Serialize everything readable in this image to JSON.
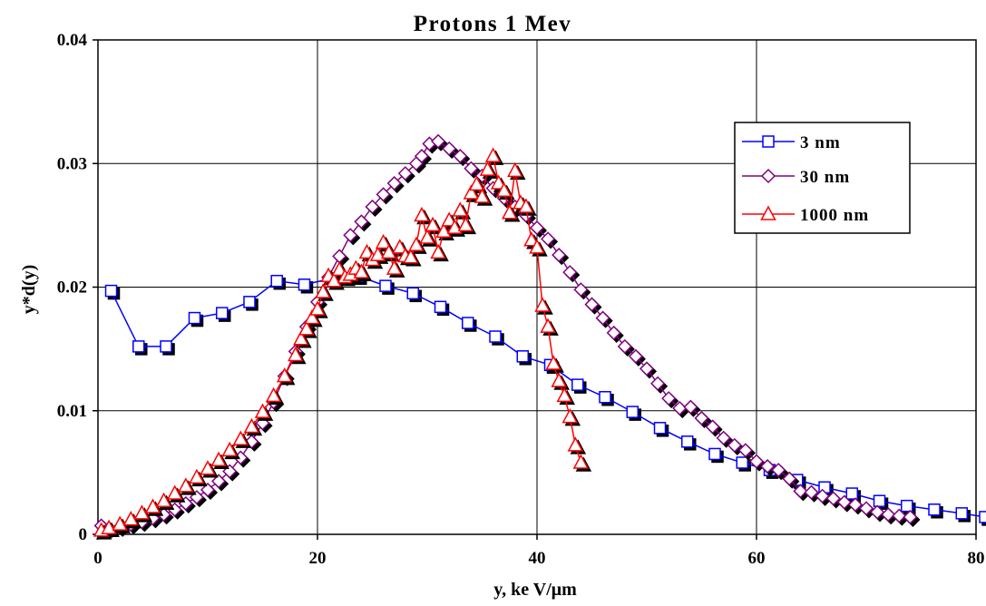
{
  "chart_data": {
    "type": "line",
    "title": "Protons 1 Mev",
    "xlabel": "y, ke V/μm",
    "ylabel": "y*d(y)",
    "xlim": [
      0,
      80
    ],
    "ylim": [
      0,
      0.04
    ],
    "xticks": [
      0,
      20,
      40,
      60,
      80
    ],
    "yticks": [
      0,
      0.01,
      0.02,
      0.03,
      0.04
    ],
    "xtick_labels": [
      "0",
      "20",
      "40",
      "60",
      "80"
    ],
    "ytick_labels": [
      "0",
      "0.01",
      "0.02",
      "0.03",
      "0.04"
    ],
    "grid": true,
    "legend_position": "top-right",
    "series": [
      {
        "name": "3 nm",
        "color": "#0000ff",
        "marker": "square",
        "x": [
          1.2,
          3.7,
          6.2,
          8.8,
          11.3,
          13.8,
          16.3,
          18.8,
          21.3,
          23.7,
          26.2,
          28.7,
          31.2,
          33.7,
          36.2,
          38.7,
          41.2,
          43.7,
          46.2,
          48.7,
          51.2,
          53.7,
          56.2,
          58.7,
          61.2,
          63.7,
          66.2,
          68.7,
          71.2,
          73.7,
          76.2,
          78.7,
          81.2
        ],
        "y": [
          0.0197,
          0.0152,
          0.0152,
          0.0175,
          0.0179,
          0.0188,
          0.0205,
          0.0202,
          0.0207,
          0.0209,
          0.0201,
          0.0195,
          0.0184,
          0.0171,
          0.016,
          0.0144,
          0.0137,
          0.0121,
          0.0111,
          0.0099,
          0.0086,
          0.0075,
          0.0065,
          0.0058,
          0.0052,
          0.0044,
          0.0038,
          0.0033,
          0.0027,
          0.0023,
          0.002,
          0.0017,
          0.0014
        ]
      },
      {
        "name": "30 nm",
        "color": "#800080",
        "marker": "diamond",
        "x": [
          0.3,
          1.0,
          2.0,
          3.0,
          4.0,
          5.0,
          6.0,
          7.0,
          8.0,
          9.0,
          10.0,
          11.0,
          12.0,
          13.0,
          14.0,
          15.0,
          16.0,
          17.0,
          18.0,
          19.0,
          20.0,
          21.0,
          22.0,
          23.0,
          24.0,
          25.0,
          26.0,
          27.0,
          28.0,
          29.0,
          29.5,
          30.2,
          31.0,
          32.0,
          33.0,
          34.0,
          35.0,
          36.0,
          37.0,
          38.0,
          39.0,
          40.0,
          41.0,
          42.0,
          43.0,
          44.0,
          45.0,
          46.0,
          47.0,
          48.0,
          49.0,
          50.0,
          51.0,
          52.0,
          53.0,
          54.0,
          55.0,
          56.0,
          57.0,
          58.0,
          59.0,
          60.0,
          61.0,
          62.0,
          63.0,
          64.0,
          65.0,
          66.0,
          67.0,
          68.0,
          69.0,
          70.0,
          71.0,
          72.0,
          73.0,
          74.0
        ],
        "y": [
          0.0007,
          0.0005,
          0.0006,
          0.0008,
          0.001,
          0.0013,
          0.0016,
          0.002,
          0.0025,
          0.003,
          0.0036,
          0.0043,
          0.0051,
          0.0062,
          0.0075,
          0.009,
          0.0107,
          0.0128,
          0.0148,
          0.0168,
          0.0188,
          0.0208,
          0.0225,
          0.0242,
          0.0253,
          0.0265,
          0.0275,
          0.0284,
          0.0292,
          0.03,
          0.0306,
          0.0316,
          0.0318,
          0.0312,
          0.0306,
          0.0296,
          0.029,
          0.028,
          0.0272,
          0.0265,
          0.0258,
          0.0248,
          0.0239,
          0.0226,
          0.0212,
          0.0198,
          0.0186,
          0.0175,
          0.0163,
          0.0152,
          0.0144,
          0.0134,
          0.0122,
          0.011,
          0.0102,
          0.0103,
          0.0094,
          0.0087,
          0.0078,
          0.0072,
          0.0068,
          0.0059,
          0.0055,
          0.0052,
          0.0045,
          0.0035,
          0.0034,
          0.0031,
          0.0029,
          0.0026,
          0.0024,
          0.0021,
          0.0018,
          0.0016,
          0.0015,
          0.0014
        ]
      },
      {
        "name": "1000 nm",
        "color": "#ff0000",
        "marker": "triangle",
        "x": [
          0.3,
          1.0,
          2.0,
          3.0,
          4.0,
          5.0,
          6.0,
          7.0,
          8.0,
          9.0,
          10.0,
          11.0,
          12.0,
          13.0,
          14.0,
          15.0,
          16.0,
          17.0,
          18.0,
          18.5,
          19.0,
          19.5,
          20.0,
          20.5,
          21.0,
          21.5,
          22.0,
          22.5,
          23.0,
          23.5,
          24.0,
          24.5,
          25.0,
          25.5,
          26.0,
          26.5,
          27.0,
          27.5,
          28.0,
          28.5,
          29.0,
          29.5,
          30.0,
          30.5,
          31.0,
          31.5,
          32.0,
          32.5,
          33.0,
          33.5,
          34.0,
          34.5,
          35.0,
          35.5,
          36.0,
          36.5,
          37.0,
          37.5,
          38.0,
          38.5,
          39.0,
          39.5,
          40.0,
          40.5,
          41.0,
          41.5,
          42.0,
          42.5,
          43.0,
          43.5,
          44.0
        ],
        "y": [
          0.0003,
          0.0005,
          0.0008,
          0.0012,
          0.0017,
          0.0022,
          0.0027,
          0.0033,
          0.0039,
          0.0046,
          0.0053,
          0.006,
          0.0068,
          0.0077,
          0.0087,
          0.0099,
          0.0112,
          0.0128,
          0.0145,
          0.0158,
          0.0166,
          0.0175,
          0.0182,
          0.0196,
          0.0209,
          0.0205,
          0.0214,
          0.0208,
          0.021,
          0.0215,
          0.0212,
          0.0228,
          0.0222,
          0.0226,
          0.0236,
          0.0228,
          0.0215,
          0.0232,
          0.0225,
          0.0224,
          0.0234,
          0.0258,
          0.024,
          0.025,
          0.0228,
          0.0245,
          0.0254,
          0.0248,
          0.0262,
          0.025,
          0.0276,
          0.0283,
          0.0273,
          0.0295,
          0.0306,
          0.0284,
          0.0278,
          0.026,
          0.0294,
          0.0268,
          0.0265,
          0.0238,
          0.0232,
          0.0185,
          0.0168,
          0.0138,
          0.0124,
          0.0112,
          0.0095,
          0.0072,
          0.0058
        ]
      }
    ]
  }
}
